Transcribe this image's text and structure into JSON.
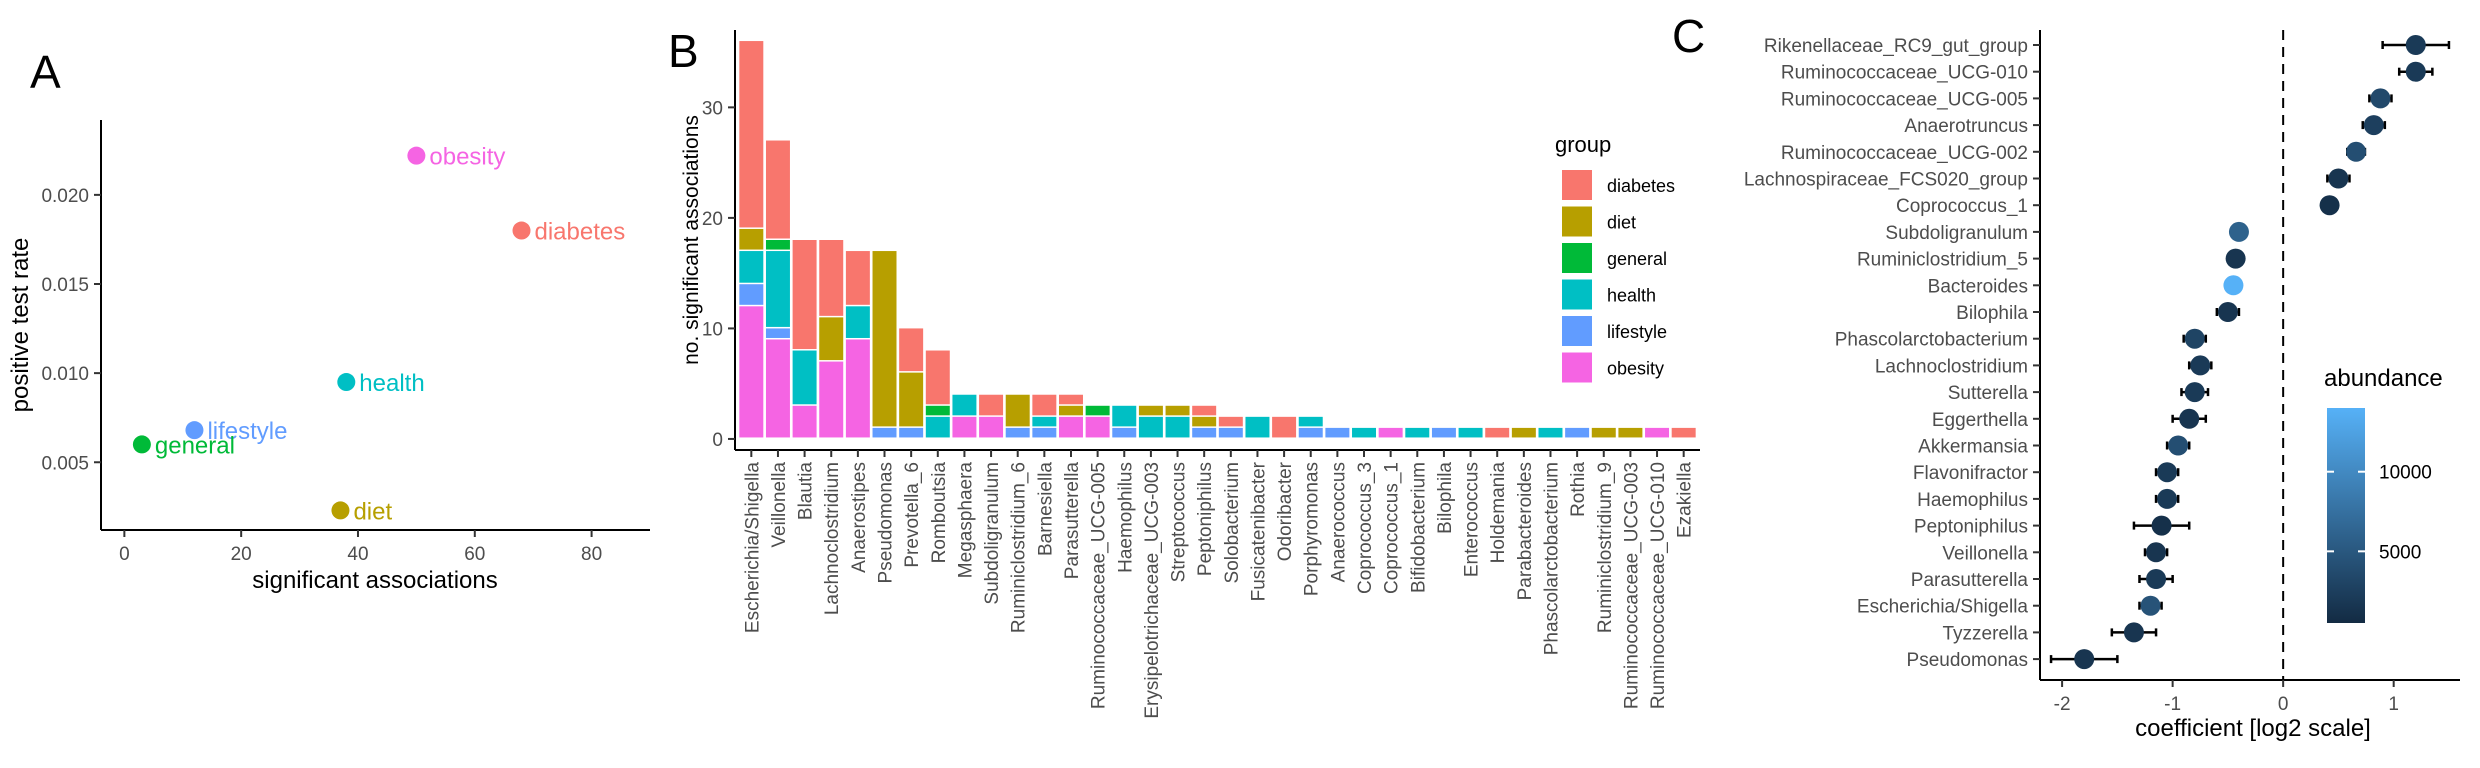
{
  "panel_letters": {
    "a": "A",
    "b": "B",
    "c": "C"
  },
  "colors": {
    "diabetes": "#F8766D",
    "diet": "#B79F00",
    "general": "#00BA38",
    "health": "#00BFC4",
    "lifestyle": "#619CFF",
    "obesity": "#F564E3",
    "abundance_low": "#132B43",
    "abundance_high": "#56B1F7"
  },
  "chart_data": [
    {
      "panel": "A",
      "type": "scatter",
      "xlabel": "significant associations",
      "ylabel": "positive test rate",
      "xlim": [
        -4,
        90
      ],
      "ylim": [
        0.0012,
        0.0242
      ],
      "xticks": [
        0,
        20,
        40,
        60,
        80
      ],
      "yticks": [
        0.005,
        0.01,
        0.015,
        0.02
      ],
      "ytick_labels": [
        "0.005",
        "0.010",
        "0.015",
        "0.020"
      ],
      "grid": false,
      "points": [
        {
          "name": "obesity",
          "x": 50,
          "y": 0.0222
        },
        {
          "name": "diabetes",
          "x": 68,
          "y": 0.018
        },
        {
          "name": "health",
          "x": 38,
          "y": 0.0095
        },
        {
          "name": "lifestyle",
          "x": 12,
          "y": 0.0068
        },
        {
          "name": "general",
          "x": 3,
          "y": 0.006
        },
        {
          "name": "diet",
          "x": 37,
          "y": 0.0023
        }
      ]
    },
    {
      "panel": "B",
      "type": "bar",
      "stacked": true,
      "xlabel": "",
      "ylabel": "no. significant associations",
      "ylim": [
        -1,
        37
      ],
      "yticks": [
        0,
        10,
        20,
        30
      ],
      "grid": false,
      "legend": {
        "title": "group",
        "placement": "right"
      },
      "categories": [
        "Escherichia/Shigella",
        "Veillonella",
        "Blautia",
        "Lachnoclostridium",
        "Anaerostipes",
        "Pseudomonas",
        "Prevotella_6",
        "Romboutsia",
        "Megasphaera",
        "Subdoligranulum",
        "Ruminiclostridium_6",
        "Barnesiella",
        "Parasutterella",
        "Ruminococcaceae_UCG-005",
        "Haemophilus",
        "Erysipelotrichaceae_UCG-003",
        "Streptococcus",
        "Peptoniphilus",
        "Solobacterium",
        "Fusicatenibacter",
        "Odoribacter",
        "Porphyromonas",
        "Anaerococcus",
        "Coprococcus_3",
        "Coprococcus_1",
        "Bifidobacterium",
        "Bilophila",
        "Enterococcus",
        "Holdemania",
        "Parabacteroides",
        "Phascolarctobacterium",
        "Rothia",
        "Ruminiclostridium_9",
        "Ruminococcaceae_UCG-003",
        "Ruminococcaceae_UCG-010",
        "Ezakiella"
      ],
      "series": [
        {
          "name": "obesity",
          "values": [
            12,
            9,
            3,
            7,
            9,
            0,
            0,
            0,
            2,
            2,
            0,
            0,
            2,
            2,
            0,
            0,
            0,
            0,
            0,
            0,
            0,
            0,
            0,
            0,
            1,
            0,
            0,
            0,
            0,
            0,
            0,
            0,
            0,
            0,
            1,
            0
          ]
        },
        {
          "name": "lifestyle",
          "values": [
            2,
            1,
            0,
            0,
            0,
            1,
            1,
            0,
            0,
            0,
            1,
            1,
            0,
            0,
            1,
            0,
            0,
            1,
            1,
            0,
            0,
            1,
            1,
            0,
            0,
            0,
            1,
            0,
            0,
            0,
            0,
            1,
            0,
            0,
            0,
            0
          ]
        },
        {
          "name": "health",
          "values": [
            3,
            7,
            5,
            0,
            3,
            0,
            0,
            2,
            2,
            0,
            0,
            1,
            0,
            0,
            2,
            2,
            2,
            0,
            0,
            2,
            0,
            1,
            0,
            1,
            0,
            1,
            0,
            1,
            0,
            0,
            1,
            0,
            0,
            0,
            0,
            0
          ]
        },
        {
          "name": "general",
          "values": [
            0,
            1,
            0,
            0,
            0,
            0,
            0,
            1,
            0,
            0,
            0,
            0,
            0,
            1,
            0,
            0,
            0,
            0,
            0,
            0,
            0,
            0,
            0,
            0,
            0,
            0,
            0,
            0,
            0,
            0,
            0,
            0,
            0,
            0,
            0,
            0
          ]
        },
        {
          "name": "diet",
          "values": [
            2,
            0,
            0,
            4,
            0,
            16,
            5,
            0,
            0,
            0,
            3,
            0,
            1,
            0,
            0,
            1,
            1,
            1,
            0,
            0,
            0,
            0,
            0,
            0,
            0,
            0,
            0,
            0,
            0,
            1,
            0,
            0,
            1,
            1,
            0,
            0
          ]
        },
        {
          "name": "diabetes",
          "values": [
            17,
            9,
            10,
            7,
            5,
            0,
            4,
            5,
            0,
            2,
            0,
            2,
            1,
            0,
            0,
            0,
            0,
            1,
            1,
            0,
            2,
            0,
            0,
            0,
            0,
            0,
            0,
            0,
            1,
            0,
            0,
            0,
            0,
            0,
            0,
            1
          ]
        }
      ]
    },
    {
      "panel": "C",
      "type": "scatter",
      "subtype": "forest",
      "xlabel": "coefficient [log2 scale]",
      "ylabel": "",
      "xlim": [
        -2.2,
        1.6
      ],
      "xticks": [
        -2,
        -1,
        0,
        1
      ],
      "xtick_labels": [
        "-2",
        "-1",
        "0",
        "1"
      ],
      "reference_line": 0,
      "grid": false,
      "legend": {
        "title": "abundance",
        "placement": "bottom-right",
        "ticks": [
          5000,
          10000
        ],
        "range": [
          500,
          14000
        ]
      },
      "rows": [
        {
          "label": "Rikenellaceae_RC9_gut_group",
          "coef": 1.2,
          "lo": 0.9,
          "hi": 1.5,
          "abundance": 2000
        },
        {
          "label": "Ruminococcaceae_UCG-010",
          "coef": 1.2,
          "lo": 1.05,
          "hi": 1.35,
          "abundance": 2000
        },
        {
          "label": "Ruminococcaceae_UCG-005",
          "coef": 0.88,
          "lo": 0.78,
          "hi": 0.98,
          "abundance": 3500
        },
        {
          "label": "Anaerotruncus",
          "coef": 0.82,
          "lo": 0.72,
          "hi": 0.92,
          "abundance": 2500
        },
        {
          "label": "Ruminococcaceae_UCG-002",
          "coef": 0.66,
          "lo": 0.58,
          "hi": 0.74,
          "abundance": 4000
        },
        {
          "label": "Lachnospiraceae_FCS020_group",
          "coef": 0.5,
          "lo": 0.4,
          "hi": 0.6,
          "abundance": 1500
        },
        {
          "label": "Coprococcus_1",
          "coef": 0.42,
          "lo": 0.36,
          "hi": 0.48,
          "abundance": 1000
        },
        {
          "label": "Subdoligranulum",
          "coef": -0.4,
          "lo": -0.45,
          "hi": -0.35,
          "abundance": 6000
        },
        {
          "label": "Ruminiclostridium_5",
          "coef": -0.43,
          "lo": -0.48,
          "hi": -0.38,
          "abundance": 1500
        },
        {
          "label": "Bacteroides",
          "coef": -0.45,
          "lo": -0.5,
          "hi": -0.4,
          "abundance": 14000
        },
        {
          "label": "Bilophila",
          "coef": -0.5,
          "lo": -0.6,
          "hi": -0.4,
          "abundance": 1500
        },
        {
          "label": "Phascolarctobacterium",
          "coef": -0.8,
          "lo": -0.9,
          "hi": -0.7,
          "abundance": 3000
        },
        {
          "label": "Lachnoclostridium",
          "coef": -0.75,
          "lo": -0.85,
          "hi": -0.65,
          "abundance": 2000
        },
        {
          "label": "Sutterella",
          "coef": -0.8,
          "lo": -0.92,
          "hi": -0.68,
          "abundance": 2000
        },
        {
          "label": "Eggerthella",
          "coef": -0.85,
          "lo": -1.0,
          "hi": -0.7,
          "abundance": 1500
        },
        {
          "label": "Akkermansia",
          "coef": -0.95,
          "lo": -1.05,
          "hi": -0.85,
          "abundance": 4000
        },
        {
          "label": "Flavonifractor",
          "coef": -1.05,
          "lo": -1.15,
          "hi": -0.95,
          "abundance": 2000
        },
        {
          "label": "Haemophilus",
          "coef": -1.05,
          "lo": -1.15,
          "hi": -0.95,
          "abundance": 2000
        },
        {
          "label": "Peptoniphilus",
          "coef": -1.1,
          "lo": -1.35,
          "hi": -0.85,
          "abundance": 1000
        },
        {
          "label": "Veillonella",
          "coef": -1.15,
          "lo": -1.25,
          "hi": -1.05,
          "abundance": 1500
        },
        {
          "label": "Parasutterella",
          "coef": -1.15,
          "lo": -1.3,
          "hi": -1.0,
          "abundance": 2000
        },
        {
          "label": "Escherichia/Shigella",
          "coef": -1.2,
          "lo": -1.3,
          "hi": -1.1,
          "abundance": 4500
        },
        {
          "label": "Tyzzerella",
          "coef": -1.35,
          "lo": -1.55,
          "hi": -1.15,
          "abundance": 1500
        },
        {
          "label": "Pseudomonas",
          "coef": -1.8,
          "lo": -2.1,
          "hi": -1.5,
          "abundance": 1500
        }
      ]
    }
  ]
}
